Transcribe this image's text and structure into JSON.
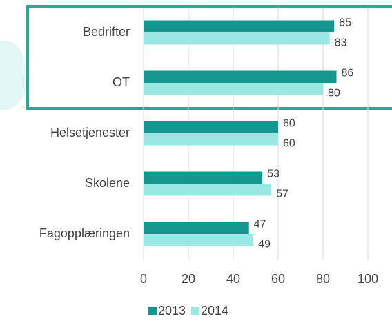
{
  "chart_data": {
    "type": "bar",
    "orientation": "horizontal",
    "categories": [
      "Bedrifter",
      "OT",
      "Helsetjenester",
      "Skolene",
      "Fagopplæringen"
    ],
    "series": [
      {
        "name": "2013",
        "color": "#12968e",
        "values": [
          85,
          86,
          60,
          53,
          47
        ]
      },
      {
        "name": "2014",
        "color": "#9ae7e4",
        "values": [
          83,
          80,
          60,
          57,
          49
        ]
      }
    ],
    "xlim": [
      0,
      100
    ],
    "xticks": [
      0,
      20,
      40,
      60,
      80,
      100
    ],
    "grid": true,
    "legend": "bottom"
  }
}
